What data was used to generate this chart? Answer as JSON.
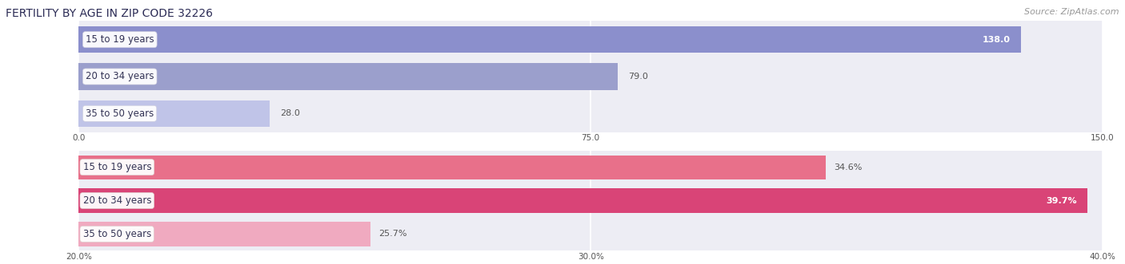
{
  "title": "FERTILITY BY AGE IN ZIP CODE 32226",
  "source": "Source: ZipAtlas.com",
  "top_chart": {
    "categories": [
      "15 to 19 years",
      "20 to 34 years",
      "35 to 50 years"
    ],
    "values": [
      138.0,
      79.0,
      28.0
    ],
    "xlim": [
      0,
      150
    ],
    "xticks": [
      0.0,
      75.0,
      150.0
    ],
    "bar_colors": [
      "#8b8fcc",
      "#9b9fcc",
      "#c0c4e8"
    ],
    "label_inside_color": "#ffffff",
    "label_outside_color": "#555555",
    "bg_color": "#ededf4"
  },
  "bottom_chart": {
    "categories": [
      "15 to 19 years",
      "20 to 34 years",
      "35 to 50 years"
    ],
    "values": [
      34.6,
      39.7,
      25.7
    ],
    "xlim": [
      20.0,
      40.0
    ],
    "xticks": [
      20.0,
      30.0,
      40.0
    ],
    "xticklabels": [
      "20.0%",
      "30.0%",
      "40.0%"
    ],
    "bar_colors": [
      "#e8708a",
      "#d94477",
      "#f0aac0"
    ],
    "label_inside_color": "#ffffff",
    "label_outside_color": "#555555",
    "bg_color": "#ededf4"
  },
  "title_color": "#2b2b55",
  "title_fontsize": 10,
  "source_fontsize": 8,
  "label_fontsize": 8,
  "category_fontsize": 8.5,
  "bar_height": 0.72,
  "fig_bg": "#ffffff",
  "pill_bg": "#ffffff",
  "pill_text_color": "#333355"
}
